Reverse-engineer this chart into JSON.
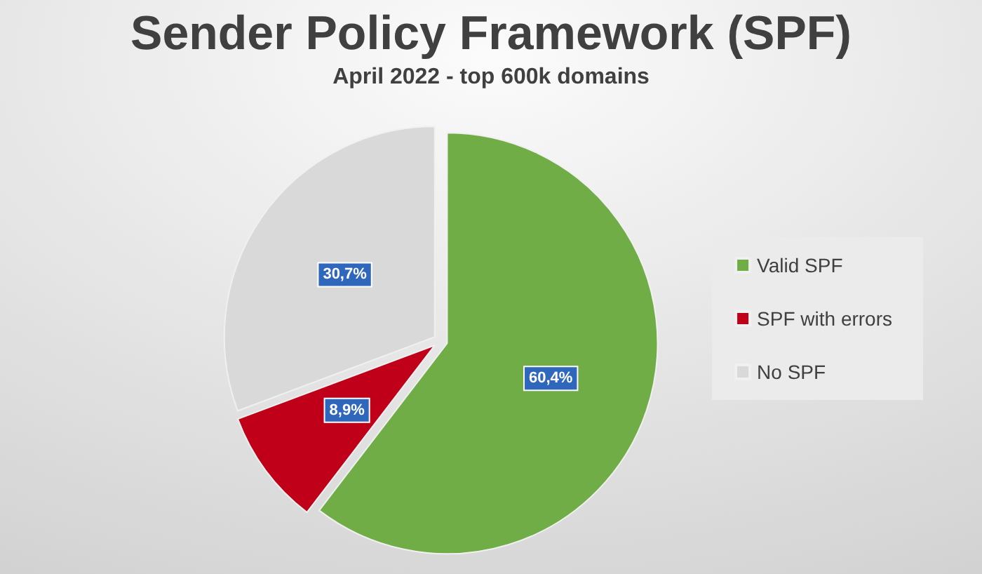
{
  "chart_data": {
    "type": "pie",
    "title": "Sender Policy Framework (SPF)",
    "subtitle": "April 2022 - top 600k domains",
    "categories": [
      "Valid SPF",
      "SPF with errors",
      "No SPF"
    ],
    "values": [
      60.4,
      8.9,
      30.7
    ],
    "colors": [
      "#70ad47",
      "#c00018",
      "#d9d9d9"
    ],
    "value_labels": [
      "60,4%",
      "8,9%",
      "30,7%"
    ],
    "legend": "right"
  }
}
